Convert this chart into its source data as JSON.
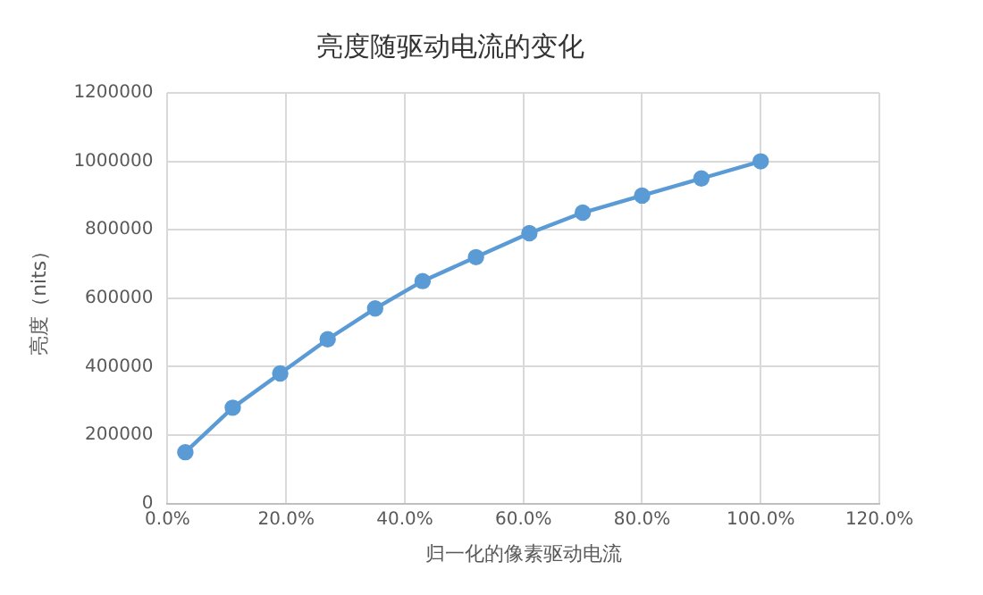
{
  "chart_data": {
    "type": "line",
    "title": "亮度随驱动电流的变化",
    "xlabel": "归一化的像素驱动电流",
    "ylabel": "亮度（nits）",
    "x": [
      0.03,
      0.11,
      0.19,
      0.27,
      0.35,
      0.43,
      0.52,
      0.61,
      0.7,
      0.8,
      0.9,
      1.0
    ],
    "series": [
      {
        "color": "#5b9bd5",
        "values": [
          150000,
          280000,
          380000,
          480000,
          570000,
          650000,
          720000,
          790000,
          850000,
          900000,
          950000,
          1000000
        ]
      }
    ],
    "xlim": [
      0,
      1.2
    ],
    "xticks": [
      {
        "value": 0,
        "label": "0.0%"
      },
      {
        "value": 0.2,
        "label": "20.0%"
      },
      {
        "value": 0.4,
        "label": "40.0%"
      },
      {
        "value": 0.6,
        "label": "60.0%"
      },
      {
        "value": 0.8,
        "label": "80.0%"
      },
      {
        "value": 1.0,
        "label": "100.0%"
      },
      {
        "value": 1.2,
        "label": "120.0%"
      }
    ],
    "ylim": [
      0,
      1200000
    ],
    "yticks": [
      0,
      200000,
      400000,
      600000,
      800000,
      1000000,
      1200000
    ],
    "grid": true,
    "legend": false,
    "marker": "circle",
    "line_style": "solid"
  }
}
